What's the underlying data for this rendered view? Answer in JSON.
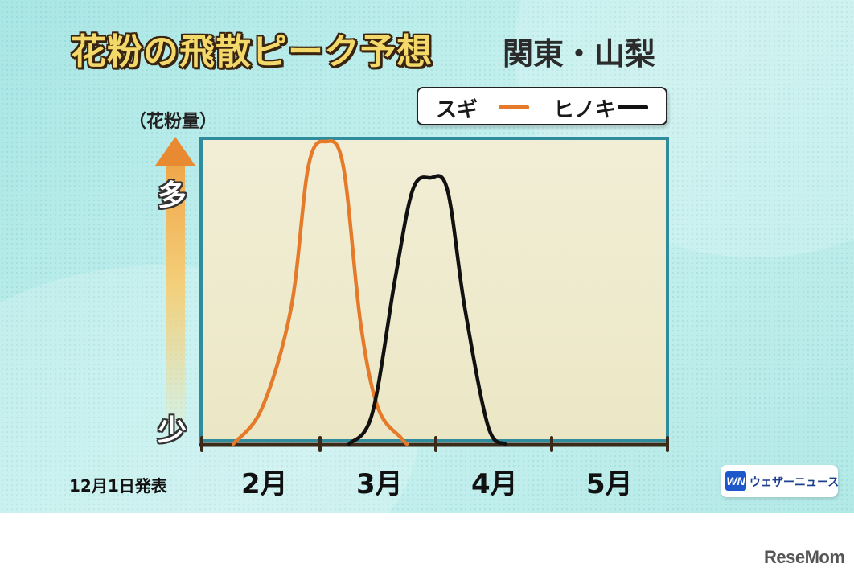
{
  "title": "花粉の飛散ピーク予想",
  "region": "関東・山梨",
  "legend": {
    "sugi": "スギ",
    "hinoki": "ヒノキ"
  },
  "ylabel": "（花粉量）",
  "y_high": "多",
  "y_low": "少",
  "announcement": "12月1日発表",
  "brand": {
    "mark": "WN",
    "name": "ウェザーニュース"
  },
  "watermark": "ReseMom",
  "colors": {
    "sugi": "#e47a2a",
    "hinoki": "#111111",
    "frame": "#2f8c9c"
  },
  "chart_data": {
    "type": "line",
    "title": "花粉の飛散ピーク予想",
    "ylabel": "（花粉量）",
    "x_ticks": [
      "2月",
      "3月",
      "4月",
      "5月"
    ],
    "y_scale": "relative (少 → 多)",
    "ylim": [
      0,
      1
    ],
    "series": [
      {
        "name": "スギ",
        "color": "#e47a2a",
        "points": [
          [
            -0.25,
            0.0
          ],
          [
            0.0,
            0.12
          ],
          [
            0.25,
            0.45
          ],
          [
            0.4,
            0.92
          ],
          [
            0.55,
            1.0
          ],
          [
            0.7,
            0.92
          ],
          [
            0.85,
            0.4
          ],
          [
            1.0,
            0.12
          ],
          [
            1.2,
            0.02
          ],
          [
            1.25,
            0.0
          ]
        ]
      },
      {
        "name": "ヒノキ",
        "color": "#111111",
        "points": [
          [
            0.75,
            0.0
          ],
          [
            0.95,
            0.1
          ],
          [
            1.15,
            0.55
          ],
          [
            1.3,
            0.84
          ],
          [
            1.45,
            0.88
          ],
          [
            1.6,
            0.84
          ],
          [
            1.75,
            0.45
          ],
          [
            1.95,
            0.06
          ],
          [
            2.1,
            0.0
          ]
        ]
      }
    ]
  }
}
